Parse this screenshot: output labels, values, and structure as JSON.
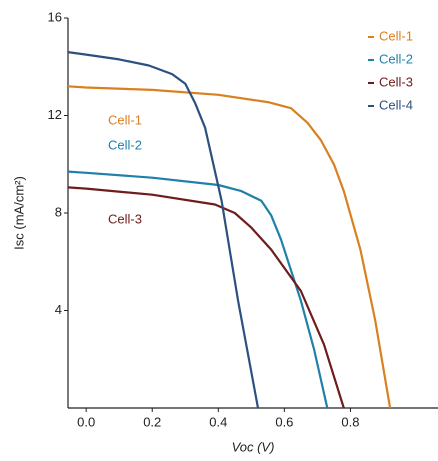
{
  "chart_data": {
    "type": "line",
    "x_label": "Voc (V)",
    "y_label": "Isc (mA/cm²)",
    "xlim": [
      -0.055,
      1.065
    ],
    "ylim": [
      0,
      16
    ],
    "xticks": [
      {
        "value": 0,
        "label": "0.0"
      },
      0.2,
      0.4,
      0.6,
      0.8
    ],
    "yticks": [
      4,
      8,
      12,
      16
    ],
    "legend": "upper right",
    "annotations": [
      "Cell-1",
      "Cell-2",
      "Cell-3"
    ],
    "series": [
      {
        "name": "Cell-1",
        "color": "#d9801f",
        "x": [
          -0.055,
          0,
          0.2,
          0.4,
          0.55,
          0.62,
          0.67,
          0.71,
          0.75,
          0.78,
          0.83,
          0.875,
          0.92
        ],
        "values": [
          13.2,
          13.15,
          13.05,
          12.85,
          12.55,
          12.3,
          11.7,
          11.0,
          10.0,
          8.9,
          6.5,
          3.6,
          0
        ]
      },
      {
        "name": "Cell-2",
        "color": "#1f80aa",
        "x": [
          -0.055,
          0,
          0.2,
          0.4,
          0.47,
          0.53,
          0.56,
          0.59,
          0.65,
          0.69,
          0.73
        ],
        "values": [
          9.7,
          9.65,
          9.45,
          9.15,
          8.9,
          8.5,
          7.9,
          6.9,
          4.4,
          2.4,
          0
        ]
      },
      {
        "name": "Cell-3",
        "color": "#6e1c1c",
        "x": [
          -0.055,
          0,
          0.2,
          0.39,
          0.45,
          0.5,
          0.56,
          0.65,
          0.72,
          0.78
        ],
        "values": [
          9.05,
          9.0,
          8.75,
          8.35,
          8.0,
          7.4,
          6.5,
          4.8,
          2.6,
          0
        ]
      },
      {
        "name": "Cell-4",
        "color": "#2c5180",
        "x": [
          -0.055,
          0,
          0.1,
          0.19,
          0.26,
          0.3,
          0.33,
          0.36,
          0.41,
          0.46,
          0.52
        ],
        "values": [
          14.6,
          14.5,
          14.3,
          14.05,
          13.7,
          13.3,
          12.5,
          11.5,
          8.5,
          4.4,
          0
        ]
      }
    ]
  }
}
